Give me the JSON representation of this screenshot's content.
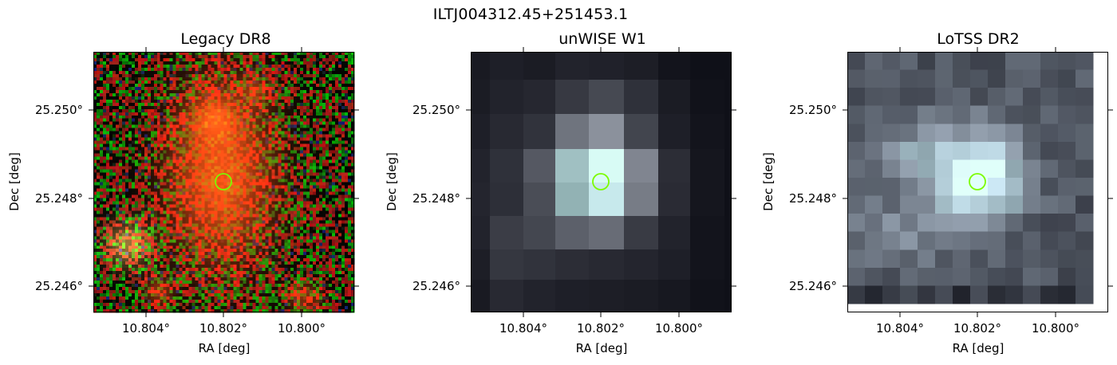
{
  "figure": {
    "title": "ILTJ004312.45+251453.1",
    "marker_color": "#7cfc00"
  },
  "panels": [
    {
      "id": "legacy",
      "title": "Legacy DR8",
      "xlabel": "RA [deg]",
      "ylabel": "Dec [deg]",
      "x_ticks": [
        "10.804°",
        "10.802°",
        "10.800°"
      ],
      "y_ticks": [
        "25.250°",
        "25.248°",
        "25.246°"
      ],
      "image_type": "optical RGB cutout"
    },
    {
      "id": "unwise",
      "title": "unWISE W1",
      "xlabel": "RA [deg]",
      "ylabel": "Dec [deg]",
      "x_ticks": [
        "10.804°",
        "10.802°",
        "10.800°"
      ],
      "y_ticks": [
        "25.250°",
        "25.248°",
        "25.246°"
      ],
      "image_type": "infrared grayscale cutout"
    },
    {
      "id": "lotss",
      "title": "LoTSS DR2",
      "xlabel": "RA [deg]",
      "ylabel": "Dec [deg]",
      "x_ticks": [
        "10.804°",
        "10.802°",
        "10.800°"
      ],
      "y_ticks": [
        "25.250°",
        "25.248°",
        "25.246°"
      ],
      "image_type": "radio grayscale cutout"
    }
  ],
  "chart_data": {
    "type": "image-panels",
    "source": "ILTJ004312.45+251453.1",
    "x_axis": "RA [deg]",
    "y_axis": "Dec [deg]",
    "x_ticks": [
      10.804,
      10.802,
      10.8
    ],
    "y_ticks": [
      25.25,
      25.248,
      25.246
    ],
    "marker": {
      "shape": "circle",
      "ra": 10.802,
      "dec": 25.2484,
      "color": "#7cfc00"
    }
  }
}
